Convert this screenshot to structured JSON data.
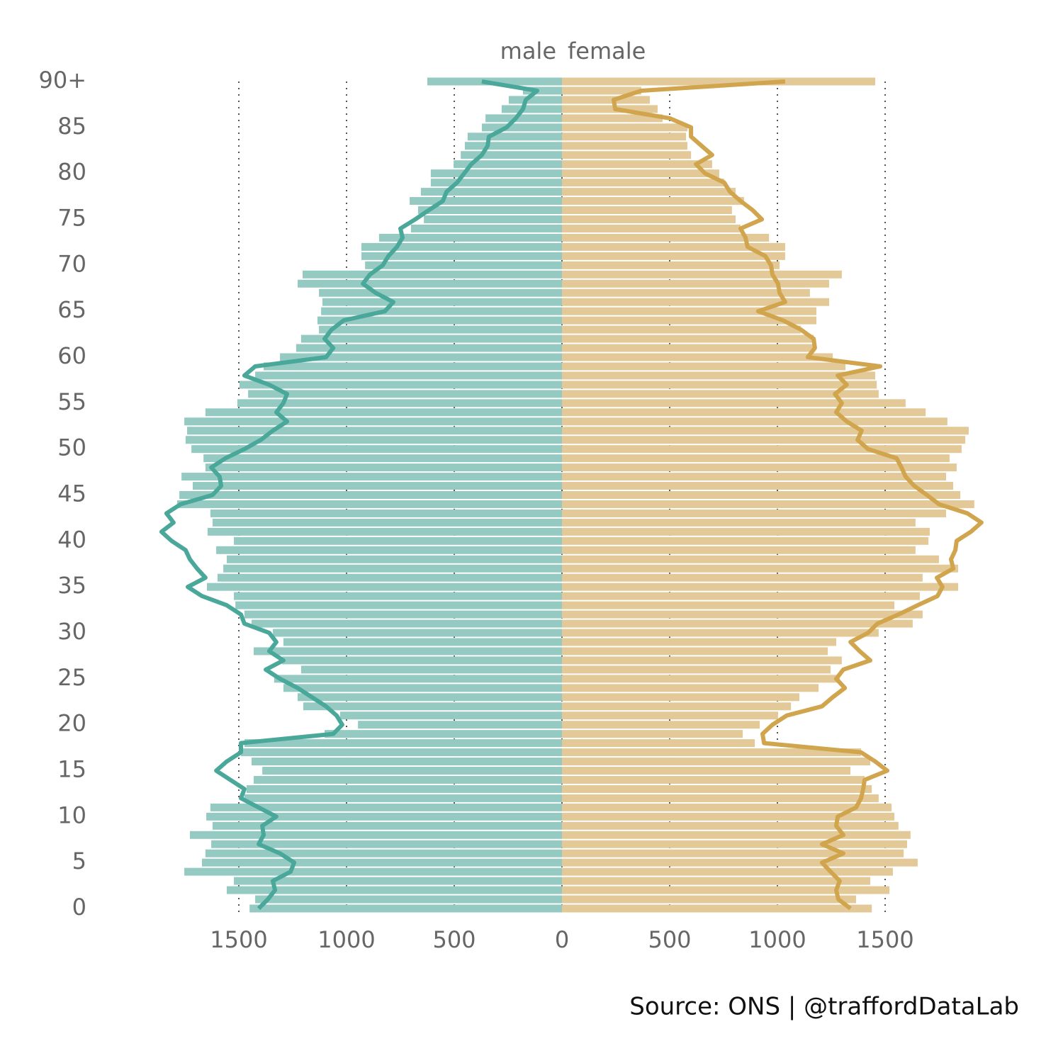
{
  "chart_data": {
    "type": "pyramid",
    "source": "Source: ONS  |  @traffordDataLab",
    "categories": [
      "0",
      null,
      null,
      null,
      null,
      "5",
      null,
      null,
      null,
      null,
      "10",
      null,
      null,
      null,
      null,
      "15",
      null,
      null,
      null,
      null,
      "20",
      null,
      null,
      null,
      null,
      "25",
      null,
      null,
      null,
      null,
      "30",
      null,
      null,
      null,
      null,
      "35",
      null,
      null,
      null,
      null,
      "40",
      null,
      null,
      null,
      null,
      "45",
      null,
      null,
      null,
      null,
      "50",
      null,
      null,
      null,
      null,
      "55",
      null,
      null,
      null,
      null,
      "60",
      null,
      null,
      null,
      null,
      "65",
      null,
      null,
      null,
      null,
      "70",
      null,
      null,
      null,
      null,
      "75",
      null,
      null,
      null,
      null,
      "80",
      null,
      null,
      null,
      null,
      "85",
      null,
      null,
      null,
      null,
      "90+"
    ],
    "xlim": [
      0,
      2000
    ],
    "xticks": [
      0,
      500,
      1000,
      1500
    ],
    "grid": true,
    "series": [
      {
        "name": "male",
        "color": "#95cac3",
        "line_color": "#4aa89a",
        "values": [
          1450,
          1424,
          1556,
          1523,
          1753,
          1671,
          1655,
          1628,
          1727,
          1622,
          1651,
          1632,
          1474,
          1464,
          1431,
          1391,
          1441,
          1490,
          1474,
          1102,
          947,
          1030,
          1201,
          1227,
          1293,
          1336,
          1211,
          1299,
          1431,
          1293,
          1342,
          1441,
          1474,
          1516,
          1523,
          1648,
          1599,
          1572,
          1556,
          1605,
          1523,
          1645,
          1622,
          1632,
          1786,
          1776,
          1714,
          1766,
          1655,
          1664,
          1720,
          1747,
          1740,
          1753,
          1655,
          1507,
          1457,
          1497,
          1424,
          1385,
          1309,
          1234,
          1211,
          1128,
          1135,
          1118,
          1112,
          1128,
          1227,
          1204,
          914,
          931,
          931,
          849,
          701,
          641,
          668,
          707,
          655,
          609,
          609,
          503,
          470,
          451,
          438,
          372,
          355,
          280,
          247,
          181,
          625
        ],
        "line": [
          1408,
          1365,
          1332,
          1342,
          1260,
          1243,
          1309,
          1408,
          1385,
          1391,
          1326,
          1408,
          1490,
          1474,
          1539,
          1605,
          1556,
          1490,
          1490,
          1062,
          1020,
          1046,
          1095,
          1161,
          1227,
          1309,
          1375,
          1293,
          1359,
          1326,
          1359,
          1474,
          1490,
          1556,
          1671,
          1737,
          1655,
          1694,
          1727,
          1747,
          1812,
          1859,
          1803,
          1836,
          1770,
          1622,
          1582,
          1589,
          1628,
          1562,
          1474,
          1398,
          1342,
          1276,
          1326,
          1293,
          1276,
          1359,
          1474,
          1424,
          1095,
          1062,
          1102,
          1069,
          1013,
          822,
          783,
          865,
          924,
          891,
          832,
          806,
          766,
          740,
          750,
          681,
          618,
          553,
          536,
          487,
          454,
          421,
          372,
          345,
          339,
          257,
          214,
          181,
          168,
          115,
          372
        ]
      },
      {
        "name": "female",
        "color": "#e3c997",
        "line_color": "#d0a54d",
        "values": [
          1438,
          1365,
          1520,
          1431,
          1536,
          1651,
          1586,
          1602,
          1618,
          1562,
          1543,
          1530,
          1470,
          1438,
          1405,
          1339,
          1431,
          1388,
          895,
          839,
          918,
          1003,
          1063,
          1102,
          1191,
          1289,
          1247,
          1299,
          1234,
          1273,
          1470,
          1628,
          1674,
          1543,
          1661,
          1839,
          1674,
          1839,
          1750,
          1641,
          1701,
          1707,
          1641,
          1783,
          1914,
          1849,
          1816,
          1783,
          1832,
          1799,
          1855,
          1872,
          1888,
          1789,
          1688,
          1595,
          1470,
          1461,
          1454,
          1316,
          1257,
          1174,
          1168,
          1109,
          1181,
          1181,
          1240,
          1151,
          1240,
          1299,
          1010,
          1036,
          1036,
          961,
          829,
          806,
          789,
          845,
          806,
          753,
          730,
          697,
          599,
          582,
          576,
          582,
          467,
          444,
          408,
          368,
          1454
        ],
        "line": [
          1339,
          1283,
          1273,
          1289,
          1247,
          1207,
          1306,
          1207,
          1306,
          1273,
          1280,
          1365,
          1388,
          1398,
          1405,
          1510,
          1454,
          1388,
          938,
          931,
          977,
          1043,
          1207,
          1257,
          1313,
          1273,
          1306,
          1431,
          1382,
          1339,
          1421,
          1464,
          1562,
          1651,
          1743,
          1766,
          1740,
          1816,
          1806,
          1826,
          1832,
          1898,
          1947,
          1882,
          1750,
          1694,
          1635,
          1595,
          1576,
          1553,
          1421,
          1372,
          1391,
          1322,
          1273,
          1299,
          1267,
          1322,
          1280,
          1477,
          1141,
          1174,
          1168,
          1109,
          1026,
          911,
          1036,
          1010,
          1003,
          977,
          970,
          944,
          862,
          852,
          829,
          928,
          885,
          829,
          780,
          753,
          664,
          622,
          697,
          648,
          599,
          599,
          500,
          247,
          240,
          368,
          1036
        ]
      }
    ]
  }
}
